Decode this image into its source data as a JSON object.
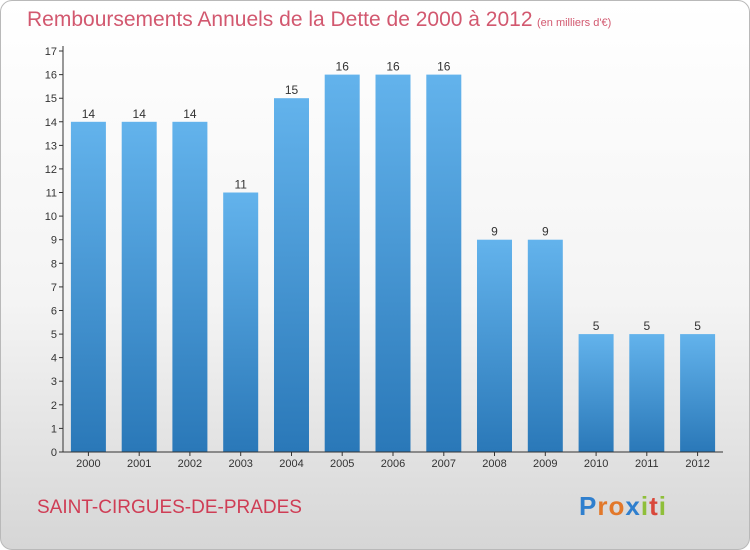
{
  "title": "Remboursements Annuels de la Dette de 2000 à 2012",
  "subtitle": "(en milliers d'€)",
  "location": "SAINT-CIRGUES-DE-PRADES",
  "logo": {
    "text": "Proxiti",
    "letter_colors": [
      "#2f7fce",
      "#e2782a",
      "#e2782a",
      "#2f7fce",
      "#8fbf3a",
      "#d9483b",
      "#8fbf3a"
    ]
  },
  "colors": {
    "title": "#d2586f",
    "bar_top": "#63b3ec",
    "bar_bottom": "#2a78b8",
    "axis": "#333333"
  },
  "chart_data": {
    "type": "bar",
    "categories": [
      "2000",
      "2001",
      "2002",
      "2003",
      "2004",
      "2005",
      "2006",
      "2007",
      "2008",
      "2009",
      "2010",
      "2011",
      "2012"
    ],
    "values": [
      14,
      14,
      14,
      11,
      15,
      16,
      16,
      16,
      9,
      9,
      5,
      5,
      5
    ],
    "title": "Remboursements Annuels de la Dette de 2000 à 2012",
    "subtitle": "(en milliers d'€)",
    "xlabel": "",
    "ylabel": "",
    "ylim": [
      0,
      17
    ],
    "yticks": [
      0,
      1,
      2,
      3,
      4,
      5,
      6,
      7,
      8,
      9,
      10,
      11,
      12,
      13,
      14,
      15,
      16,
      17
    ],
    "grid": false,
    "data_labels": true
  }
}
